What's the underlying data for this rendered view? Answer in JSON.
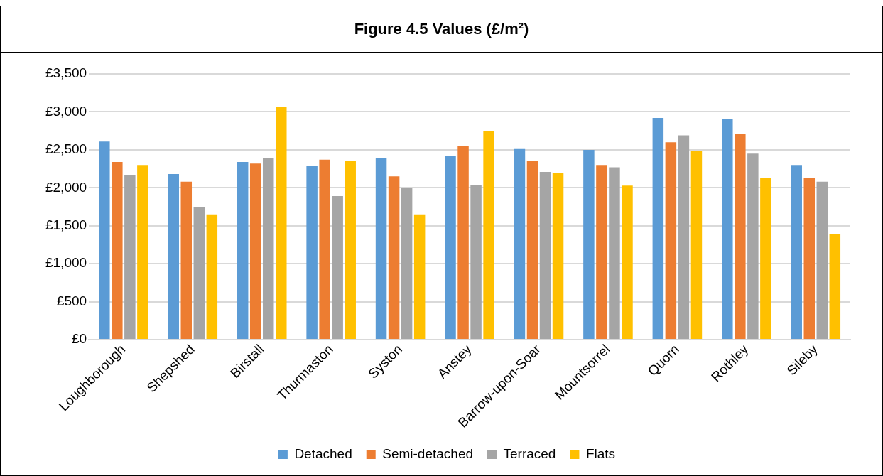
{
  "chart_data": {
    "type": "bar",
    "title": "Figure 4.5  Values (£/m²)",
    "categories": [
      "Loughborough",
      "Shepshed",
      "Birstall",
      "Thurmaston",
      "Syston",
      "Anstey",
      "Barrow-upon-Soar",
      "Mountsorrel",
      "Quorn",
      "Rothley",
      "Sileby"
    ],
    "series": [
      {
        "name": "Detached",
        "color": "#5b9bd5",
        "values": [
          2610,
          2180,
          2340,
          2290,
          2390,
          2420,
          2510,
          2500,
          2920,
          2910,
          2300
        ]
      },
      {
        "name": "Semi-detached",
        "color": "#ed7d31",
        "values": [
          2340,
          2080,
          2320,
          2370,
          2150,
          2550,
          2350,
          2300,
          2600,
          2710,
          2130
        ]
      },
      {
        "name": "Terraced",
        "color": "#a5a5a5",
        "values": [
          2170,
          1750,
          2390,
          1890,
          2000,
          2040,
          2210,
          2270,
          2690,
          2450,
          2080
        ]
      },
      {
        "name": "Flats",
        "color": "#ffc000",
        "values": [
          2300,
          1650,
          3070,
          2350,
          1650,
          2750,
          2200,
          2030,
          2480,
          2130,
          1390
        ]
      }
    ],
    "ylim": [
      0,
      3500
    ],
    "yticks": [
      {
        "value": 0,
        "label": "£0"
      },
      {
        "value": 500,
        "label": "£500"
      },
      {
        "value": 1000,
        "label": "£1,000"
      },
      {
        "value": 1500,
        "label": "£1,500"
      },
      {
        "value": 2000,
        "label": "£2,000"
      },
      {
        "value": 2500,
        "label": "£2,500"
      },
      {
        "value": 3000,
        "label": "£3,000"
      },
      {
        "value": 3500,
        "label": "£3,500"
      }
    ],
    "grid": "y",
    "legend": "bottom"
  }
}
